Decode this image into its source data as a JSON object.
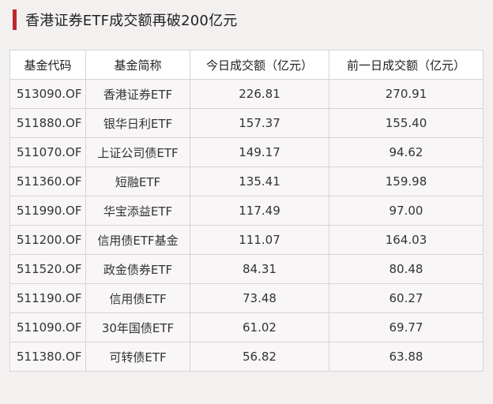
{
  "title": "香港证券ETF成交额再破200亿元",
  "colors": {
    "accent": "#c0272d",
    "page_background": "#f3f0f0",
    "header_background": "#ffffff",
    "cell_background": "#f8f6f6"
  },
  "table": {
    "headers": [
      "基金代码",
      "基金简称",
      "今日成交额（亿元）",
      "前一日成交额（亿元）"
    ],
    "rows": [
      {
        "code": "513090.OF",
        "name": "香港证券ETF",
        "today": "226.81",
        "prev": "270.91"
      },
      {
        "code": "511880.OF",
        "name": "银华日利ETF",
        "today": "157.37",
        "prev": "155.40"
      },
      {
        "code": "511070.OF",
        "name": "上证公司债ETF",
        "today": "149.17",
        "prev": "94.62"
      },
      {
        "code": "511360.OF",
        "name": "短融ETF",
        "today": "135.41",
        "prev": "159.98"
      },
      {
        "code": "511990.OF",
        "name": "华宝添益ETF",
        "today": "117.49",
        "prev": "97.00"
      },
      {
        "code": "511200.OF",
        "name": "信用债ETF基金",
        "today": "111.07",
        "prev": "164.03"
      },
      {
        "code": "511520.OF",
        "name": "政金债券ETF",
        "today": "84.31",
        "prev": "80.48"
      },
      {
        "code": "511190.OF",
        "name": "信用债ETF",
        "today": "73.48",
        "prev": "60.27"
      },
      {
        "code": "511090.OF",
        "name": "30年国债ETF",
        "today": "61.02",
        "prev": "69.77"
      },
      {
        "code": "511380.OF",
        "name": "可转债ETF",
        "today": "56.82",
        "prev": "63.88"
      }
    ]
  }
}
